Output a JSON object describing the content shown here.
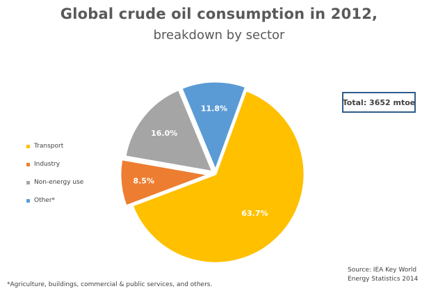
{
  "header": {
    "title": "Global crude oil consumption in 2012,",
    "subtitle": "breakdown by sector"
  },
  "total_label": "Total: 3652 mtoe",
  "source_lines": [
    "Source: IEA Key World",
    "Energy Statistics 2014"
  ],
  "footnote": "*Agriculture, buildings, commercial & public services, and others.",
  "chart_data": {
    "type": "pie",
    "title": "Global crude oil consumption in 2012,",
    "subtitle": "breakdown by sector",
    "legend_position": "left",
    "slices": [
      {
        "name": "Transport",
        "value": 63.7,
        "label": "63.7%",
        "color": "#FFC000"
      },
      {
        "name": "Industry",
        "value": 8.5,
        "label": "8.5%",
        "color": "#ED7D31"
      },
      {
        "name": "Non-energy use",
        "value": 16.0,
        "label": "16.0%",
        "color": "#A5A5A5"
      },
      {
        "name": "Other*",
        "value": 11.8,
        "label": "11.8%",
        "color": "#5B9BD5"
      }
    ]
  }
}
